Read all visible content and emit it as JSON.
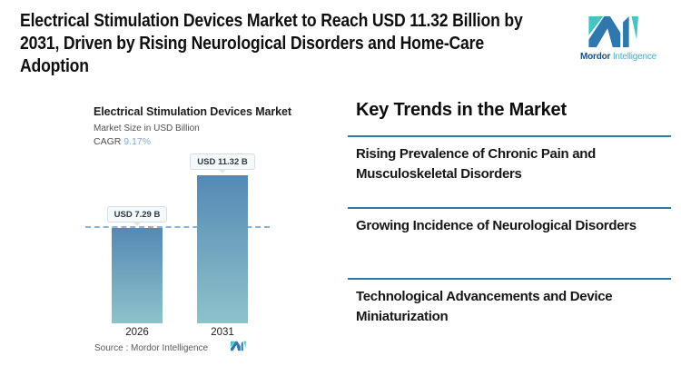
{
  "header": {
    "title": "Electrical Stimulation Devices Market to Reach USD 11.32 Billion by 2031, Driven by Rising Neurological Disorders and Home-Care Adoption",
    "title_lines": [
      "Electrical Stimulation Devices Market to Reach USD 11.32 Billion by",
      "2031, Driven by Rising Neurological Disorders and Home-Care",
      "Adoption"
    ]
  },
  "brand": {
    "name_bold": "Mordor",
    "name_light": "Intelligence",
    "blue": "#2e78ad",
    "teal": "#45c4c4"
  },
  "chart": {
    "title": "Electrical Stimulation Devices Market",
    "subtitle": "Market Size in USD Billion",
    "cagr_label": "CAGR",
    "cagr_value": "9.17%",
    "source_label": "Source :  Mordor Intelligence"
  },
  "chart_data": {
    "type": "bar",
    "title": "Electrical Stimulation Devices Market",
    "ylabel": "Market Size in USD Billion",
    "cagr_pct": 9.17,
    "categories": [
      "2026",
      "2031"
    ],
    "values": [
      7.29,
      11.32
    ],
    "value_labels": [
      "USD 7.29 B",
      "USD 11.32 B"
    ],
    "ylim": [
      0,
      11.32
    ],
    "reference_line_at": 7.29,
    "bar_color_top": "#5589b4",
    "bar_color_bottom": "#8ec2ca",
    "reference_line_color": "#8db3d9",
    "cagr_accent_color": "#7dabdb",
    "grid": false,
    "legend": false
  },
  "trends": {
    "heading": "Key Trends in the Market",
    "divider_color": "#33789e",
    "items": [
      "Rising Prevalence of Chronic Pain and Musculoskeletal Disorders",
      "Growing Incidence of Neurological Disorders",
      "Technological Advancements and Device Miniaturization"
    ]
  }
}
